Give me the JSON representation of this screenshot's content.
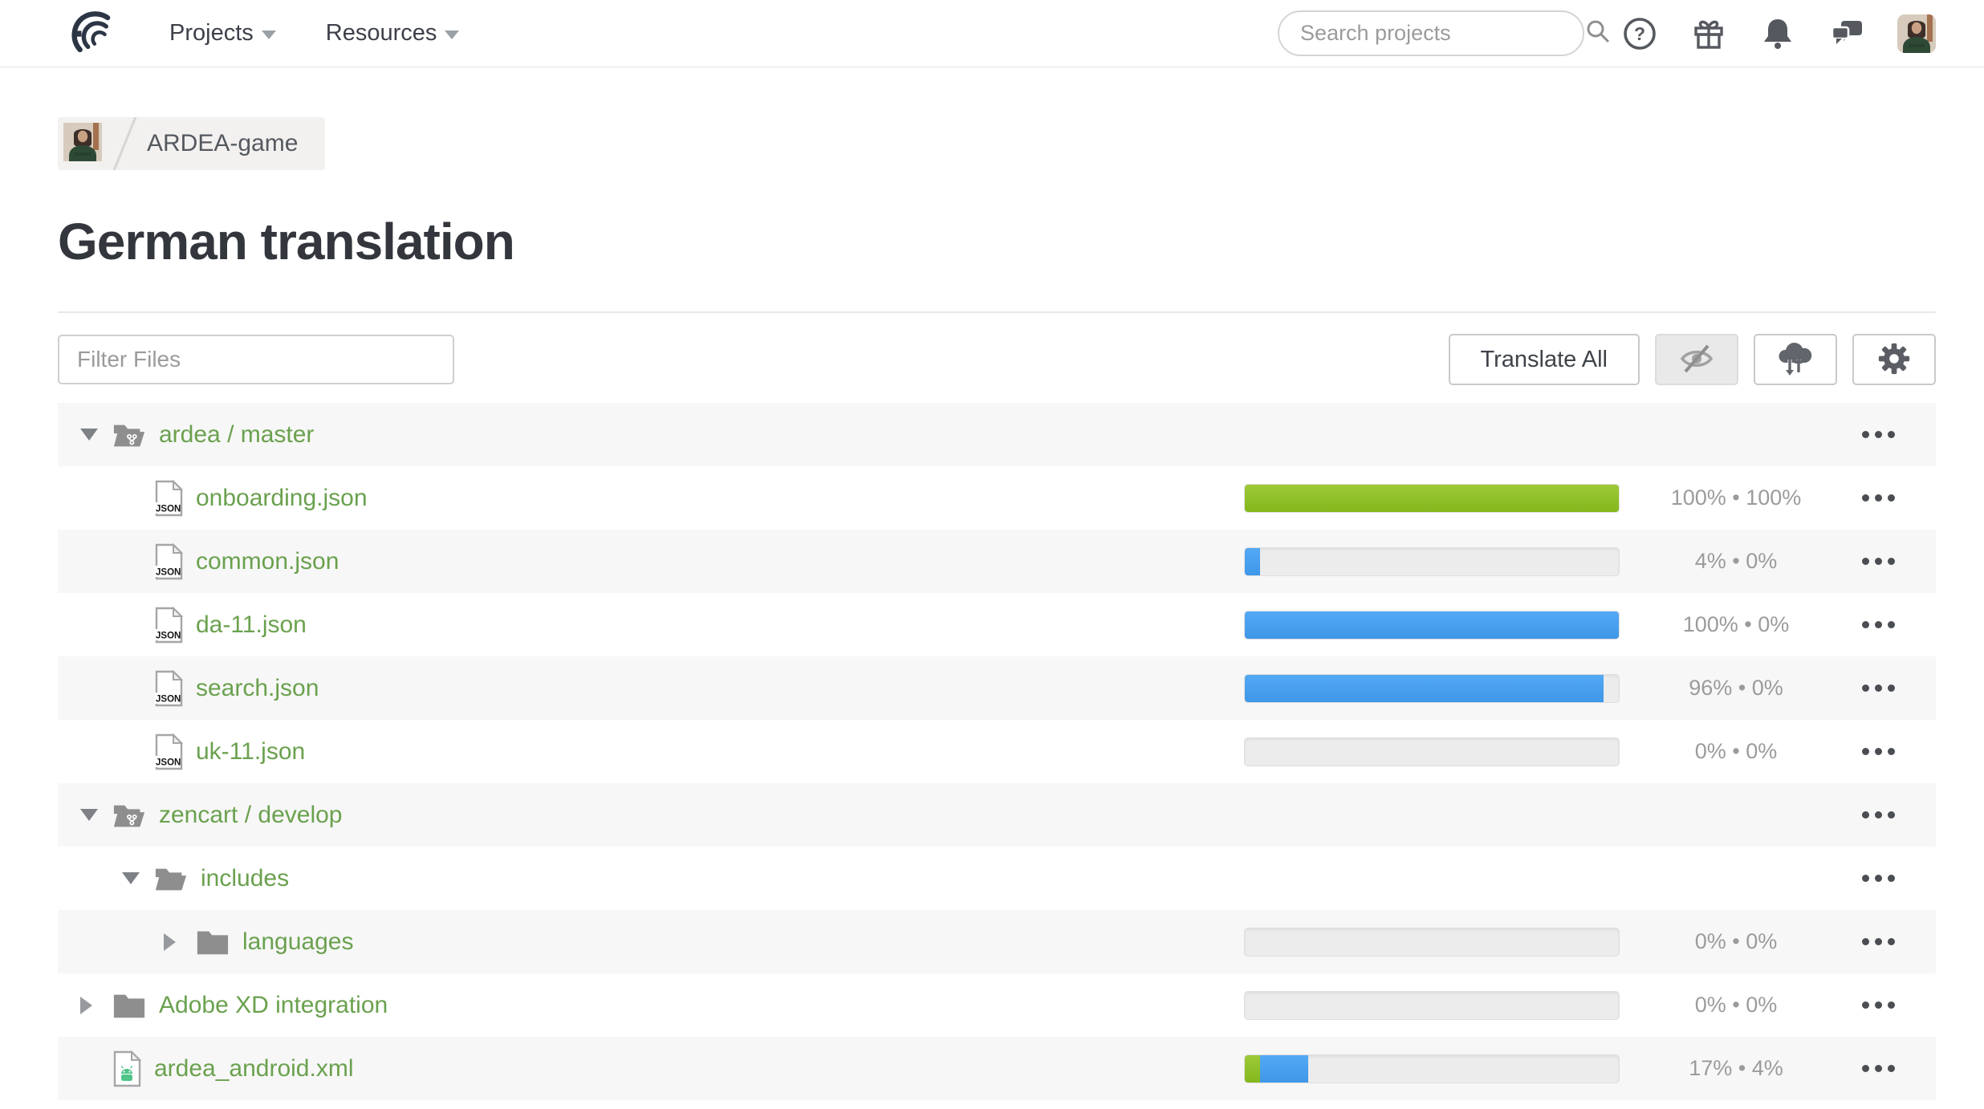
{
  "navbar": {
    "projects_label": "Projects",
    "resources_label": "Resources",
    "search_placeholder": "Search projects",
    "icons": [
      "help-icon",
      "gift-icon",
      "bell-icon",
      "chat-icon",
      "user-avatar"
    ]
  },
  "breadcrumb": {
    "project_name": "ARDEA-game"
  },
  "page_title": "German translation",
  "toolbar": {
    "filter_placeholder": "Filter Files",
    "translate_all_label": "Translate All",
    "icon_buttons": [
      "hide-completed-eye-off-icon",
      "cloud-sync-icon",
      "settings-gear-icon"
    ]
  },
  "labels": {
    "stats_separator": "•"
  },
  "colors": {
    "green_bar": "#8cc02a",
    "blue_bar": "#459fee",
    "link_green": "#6aa14e",
    "stripe": "#f7f7f7"
  },
  "file_table": {
    "rows": [
      {
        "name": "ardea / master",
        "icon": "branch-folder-icon",
        "caret": "expanded",
        "level": 0,
        "progress": null,
        "translated": null,
        "approved": null
      },
      {
        "name": "onboarding.json",
        "icon": "json-file-icon",
        "caret": null,
        "level": 1,
        "progress": [
          {
            "color": "green",
            "percent": 100
          }
        ],
        "translated": "100%",
        "approved": "100%"
      },
      {
        "name": "common.json",
        "icon": "json-file-icon",
        "caret": null,
        "level": 1,
        "progress": [
          {
            "color": "blue",
            "percent": 4
          }
        ],
        "translated": "4%",
        "approved": "0%"
      },
      {
        "name": "da-11.json",
        "icon": "json-file-icon",
        "caret": null,
        "level": 1,
        "progress": [
          {
            "color": "blue",
            "percent": 100
          }
        ],
        "translated": "100%",
        "approved": "0%"
      },
      {
        "name": "search.json",
        "icon": "json-file-icon",
        "caret": null,
        "level": 1,
        "progress": [
          {
            "color": "blue",
            "percent": 96
          }
        ],
        "translated": "96%",
        "approved": "0%"
      },
      {
        "name": "uk-11.json",
        "icon": "json-file-icon",
        "caret": null,
        "level": 1,
        "progress": [],
        "translated": "0%",
        "approved": "0%"
      },
      {
        "name": "zencart / develop",
        "icon": "branch-folder-icon",
        "caret": "expanded",
        "level": 0,
        "progress": null,
        "translated": null,
        "approved": null
      },
      {
        "name": "includes",
        "icon": "open-folder-icon",
        "caret": "expanded",
        "level": 1,
        "progress": null,
        "translated": null,
        "approved": null
      },
      {
        "name": "languages",
        "icon": "closed-folder-icon",
        "caret": "collapsed",
        "level": 2,
        "progress": [],
        "translated": "0%",
        "approved": "0%"
      },
      {
        "name": "Adobe XD integration",
        "icon": "closed-folder-icon",
        "caret": "collapsed",
        "level": 0,
        "progress": [],
        "translated": "0%",
        "approved": "0%"
      },
      {
        "name": "ardea_android.xml",
        "icon": "android-file-icon",
        "caret": null,
        "level": 0,
        "progress": [
          {
            "color": "green",
            "percent": 4
          },
          {
            "color": "blue",
            "percent": 13
          }
        ],
        "translated": "17%",
        "approved": "4%"
      }
    ]
  }
}
